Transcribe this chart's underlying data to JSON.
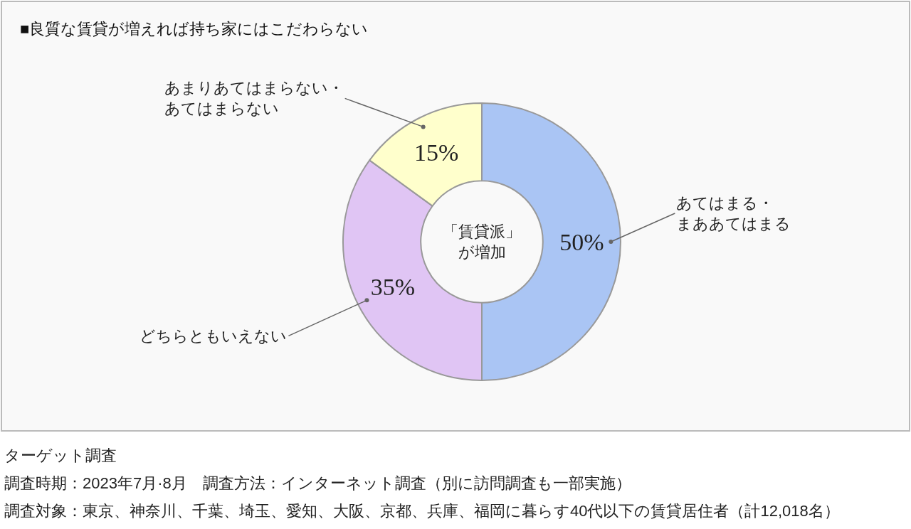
{
  "chart_data": {
    "type": "donut",
    "title": "■良質な賃貸が増えれば持ち家にはこだわらない",
    "categories": [
      "あてはまる・まああてはまる",
      "どちらともいえない",
      "あまりあてはまらない・あてはまらない"
    ],
    "values": [
      50,
      35,
      15
    ],
    "value_labels": [
      "50%",
      "35%",
      "15%"
    ],
    "colors": [
      "#aac5f4",
      "#e0c5f4",
      "#ffffcc"
    ],
    "legend": false,
    "annotations": [
      "「賃貸派」が増加",
      "ターゲット調査",
      "調査時期：2023年7月·8月　調査方法：インターネット調査（別に訪問調査も一部実施）",
      "調査対象：東京、神奈川、千葉、埼玉、愛知、大阪、京都、兵庫、福岡に暮らす40代以下の賃貸居住者（計12,018名）"
    ]
  }
}
